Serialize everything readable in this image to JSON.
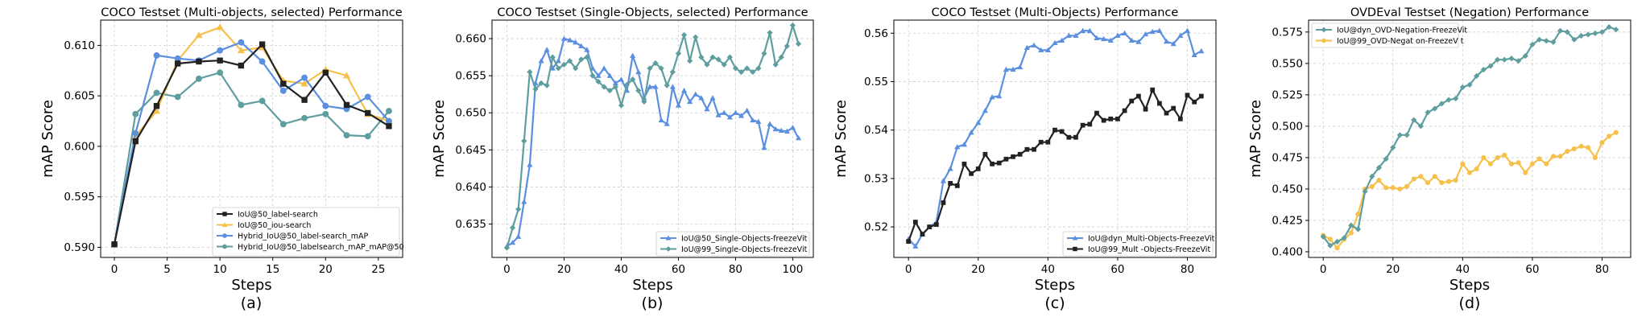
{
  "figure": {
    "background": "#ffffff"
  },
  "chart_data": [
    {
      "type": "line",
      "caption": "(a)",
      "title": "COCO Testset (Multi-objects, selected) Performance",
      "xlabel": "Steps",
      "ylabel": "mAP Score",
      "xlim": [
        -1.3,
        27.3
      ],
      "ylim": [
        0.589,
        0.6125
      ],
      "xticks": [
        0,
        5,
        10,
        15,
        20,
        25
      ],
      "yticks": [
        0.59,
        0.595,
        0.6,
        0.605,
        0.61
      ],
      "ytick_labels": [
        "0.590",
        "0.595",
        "0.600",
        "0.605",
        "0.610"
      ],
      "grid": true,
      "legend_position": "lower-right",
      "series": [
        {
          "name": "Hybrid_IoU@50_labelsearch_mAP_mAP@50",
          "color": "#5f9e9e",
          "marker": "circle",
          "x": [
            0,
            2,
            4,
            6,
            8,
            10,
            12,
            14,
            16,
            18,
            20,
            22,
            24,
            26
          ],
          "y": [
            0.5903,
            0.6032,
            0.6053,
            0.6049,
            0.6067,
            0.6073,
            0.6041,
            0.6045,
            0.6022,
            0.6028,
            0.6032,
            0.6011,
            0.601,
            0.6035
          ]
        },
        {
          "name": "IoU@50_iou-search",
          "color": "#f6c04d",
          "marker": "triangle",
          "x": [
            0,
            2,
            4,
            6,
            8,
            10,
            12,
            14,
            16,
            18,
            20,
            22,
            24,
            26
          ],
          "y": [
            0.5903,
            0.601,
            0.6035,
            0.6085,
            0.611,
            0.6118,
            0.6095,
            0.6098,
            0.6065,
            0.6062,
            0.6076,
            0.607,
            0.6032,
            0.6025
          ]
        },
        {
          "name": "Hybrid_IoU@50_label-search_mAP",
          "color": "#5b8fe0",
          "marker": "circle",
          "x": [
            0,
            2,
            4,
            6,
            8,
            10,
            12,
            14,
            16,
            18,
            20,
            22,
            24,
            26
          ],
          "y": [
            0.5903,
            0.6013,
            0.609,
            0.6087,
            0.6085,
            0.6095,
            0.6103,
            0.6084,
            0.6055,
            0.6068,
            0.604,
            0.6037,
            0.6049,
            0.6025
          ]
        },
        {
          "name": "IoU@50_label-search",
          "color": "#222222",
          "marker": "square",
          "x": [
            0,
            2,
            4,
            6,
            8,
            10,
            12,
            14,
            16,
            18,
            20,
            22,
            24,
            26
          ],
          "y": [
            0.5903,
            0.6005,
            0.604,
            0.6082,
            0.6084,
            0.6085,
            0.608,
            0.6101,
            0.6062,
            0.6046,
            0.6073,
            0.6041,
            0.6033,
            0.602
          ]
        }
      ],
      "legend_order": [
        "IoU@50_label-search",
        "IoU@50_iou-search",
        "Hybrid_IoU@50_label-search_mAP",
        "Hybrid_IoU@50_labelsearch_mAP_mAP@50"
      ]
    },
    {
      "type": "line",
      "caption": "(b)",
      "title": "COCO Testset (Single-Objects, selected) Performance",
      "xlabel": "Steps",
      "ylabel": "mAP Score",
      "xlim": [
        -5.2,
        107.2
      ],
      "ylim": [
        0.6305,
        0.6625
      ],
      "xticks": [
        0,
        20,
        40,
        60,
        80,
        100
      ],
      "yticks": [
        0.635,
        0.64,
        0.645,
        0.65,
        0.655,
        0.66
      ],
      "ytick_labels": [
        "0.635",
        "0.640",
        "0.645",
        "0.650",
        "0.655",
        "0.660"
      ],
      "grid": true,
      "legend_position": "lower-right",
      "series": [
        {
          "name": "IoU@50_Single-Objects-freezeVit",
          "color": "#5b8fe0",
          "marker": "triangle",
          "x": [
            0,
            2,
            4,
            6,
            8,
            10,
            12,
            14,
            16,
            18,
            20,
            22,
            24,
            26,
            28,
            30,
            32,
            34,
            36,
            38,
            40,
            42,
            44,
            46,
            48,
            50,
            52,
            54,
            56,
            58,
            60,
            62,
            64,
            66,
            68,
            70,
            72,
            74,
            76,
            78,
            80,
            82,
            84,
            86,
            88,
            90,
            92,
            94,
            96,
            98,
            100,
            102
          ],
          "y": [
            0.632,
            0.6325,
            0.6333,
            0.638,
            0.643,
            0.654,
            0.657,
            0.6585,
            0.656,
            0.657,
            0.66,
            0.6598,
            0.6595,
            0.659,
            0.6585,
            0.656,
            0.655,
            0.656,
            0.655,
            0.654,
            0.6545,
            0.653,
            0.6577,
            0.6555,
            0.652,
            0.6535,
            0.6535,
            0.649,
            0.6485,
            0.6535,
            0.651,
            0.653,
            0.6515,
            0.6525,
            0.652,
            0.6505,
            0.652,
            0.6497,
            0.65,
            0.6494,
            0.65,
            0.6496,
            0.6503,
            0.649,
            0.6488,
            0.6453,
            0.6485,
            0.6478,
            0.6476,
            0.6475,
            0.648,
            0.6466
          ]
        },
        {
          "name": "IoU@99_Single-Objects-freezeVit",
          "color": "#5f9e9e",
          "marker": "diamond",
          "x": [
            0,
            2,
            4,
            6,
            8,
            10,
            12,
            14,
            16,
            18,
            20,
            22,
            24,
            26,
            28,
            30,
            32,
            34,
            36,
            38,
            40,
            42,
            44,
            46,
            48,
            50,
            52,
            54,
            56,
            58,
            60,
            62,
            64,
            66,
            68,
            70,
            72,
            74,
            76,
            78,
            80,
            82,
            84,
            86,
            88,
            90,
            92,
            94,
            96,
            98,
            100,
            102
          ],
          "y": [
            0.6318,
            0.6345,
            0.637,
            0.6462,
            0.6555,
            0.6532,
            0.654,
            0.6537,
            0.6575,
            0.656,
            0.6565,
            0.657,
            0.656,
            0.6572,
            0.6575,
            0.655,
            0.6542,
            0.6535,
            0.653,
            0.6535,
            0.651,
            0.6538,
            0.6545,
            0.653,
            0.6515,
            0.656,
            0.6567,
            0.656,
            0.6537,
            0.6555,
            0.658,
            0.6605,
            0.657,
            0.6602,
            0.6575,
            0.6565,
            0.6575,
            0.6572,
            0.6565,
            0.6575,
            0.656,
            0.6555,
            0.656,
            0.6555,
            0.656,
            0.658,
            0.6608,
            0.6565,
            0.6575,
            0.659,
            0.6618,
            0.6593
          ]
        }
      ]
    },
    {
      "type": "line",
      "caption": "(c)",
      "title": "COCO Testset (Multi-Objects) Performance",
      "xlabel": "Steps",
      "ylabel": "mAP Score",
      "xlim": [
        -4.2,
        88.2
      ],
      "ylim": [
        0.5137,
        0.5627
      ],
      "xticks": [
        0,
        20,
        40,
        60,
        80
      ],
      "yticks": [
        0.52,
        0.53,
        0.54,
        0.55,
        0.56
      ],
      "ytick_labels": [
        "0.52",
        "0.53",
        "0.54",
        "0.55",
        "0.56"
      ],
      "grid": true,
      "legend_position": "lower-right",
      "series": [
        {
          "name": "IoU@dyn_Multi-Objects-FreezeVit",
          "color": "#5b8fe0",
          "marker": "triangle",
          "x": [
            0,
            2,
            4,
            6,
            8,
            10,
            12,
            14,
            16,
            18,
            20,
            22,
            24,
            26,
            28,
            30,
            32,
            34,
            36,
            38,
            40,
            42,
            44,
            46,
            48,
            50,
            52,
            54,
            56,
            58,
            60,
            62,
            64,
            66,
            68,
            70,
            72,
            74,
            76,
            78,
            80,
            82,
            84
          ],
          "y": [
            0.5175,
            0.516,
            0.5185,
            0.52,
            0.521,
            0.5295,
            0.532,
            0.5365,
            0.537,
            0.5395,
            0.5415,
            0.544,
            0.5468,
            0.547,
            0.5525,
            0.5525,
            0.553,
            0.557,
            0.5575,
            0.5565,
            0.5565,
            0.558,
            0.5585,
            0.5595,
            0.5595,
            0.5605,
            0.5605,
            0.559,
            0.5588,
            0.5585,
            0.5595,
            0.56,
            0.5585,
            0.5582,
            0.5598,
            0.5603,
            0.5605,
            0.5583,
            0.5578,
            0.5595,
            0.5605,
            0.5555,
            0.5563
          ]
        },
        {
          "name": "IoU@99_Mult -Objects-FreezeVit",
          "color": "#222222",
          "marker": "square",
          "x": [
            0,
            2,
            4,
            6,
            8,
            10,
            12,
            14,
            16,
            18,
            20,
            22,
            24,
            26,
            28,
            30,
            32,
            34,
            36,
            38,
            40,
            42,
            44,
            46,
            48,
            50,
            52,
            54,
            56,
            58,
            60,
            62,
            64,
            66,
            68,
            70,
            72,
            74,
            76,
            78,
            80,
            82,
            84
          ],
          "y": [
            0.517,
            0.521,
            0.5185,
            0.52,
            0.5205,
            0.525,
            0.529,
            0.5285,
            0.533,
            0.531,
            0.532,
            0.535,
            0.533,
            0.5332,
            0.534,
            0.5345,
            0.535,
            0.536,
            0.536,
            0.5375,
            0.5375,
            0.54,
            0.5397,
            0.5385,
            0.5385,
            0.541,
            0.5412,
            0.5435,
            0.542,
            0.5423,
            0.5423,
            0.544,
            0.546,
            0.547,
            0.5443,
            0.5483,
            0.5455,
            0.5435,
            0.5445,
            0.5423,
            0.5472,
            0.5458,
            0.547
          ]
        }
      ]
    },
    {
      "type": "line",
      "caption": "(d)",
      "title": "OVDEval Testset (Negation) Performance",
      "xlabel": "Steps",
      "ylabel": "mAP Score",
      "xlim": [
        -4.2,
        88.2
      ],
      "ylim": [
        0.3955,
        0.5845
      ],
      "xticks": [
        0,
        20,
        40,
        60,
        80
      ],
      "yticks": [
        0.4,
        0.425,
        0.45,
        0.475,
        0.5,
        0.525,
        0.55,
        0.575
      ],
      "ytick_labels": [
        "0.400",
        "0.425",
        "0.450",
        "0.475",
        "0.500",
        "0.525",
        "0.550",
        "0.575"
      ],
      "grid": true,
      "legend_position": "upper-left",
      "series": [
        {
          "name": "IoU@99_OVD-Negat on-FreezeV t",
          "color": "#f6c04d",
          "marker": "circle",
          "x": [
            0,
            2,
            4,
            6,
            8,
            10,
            12,
            14,
            16,
            18,
            20,
            22,
            24,
            26,
            28,
            30,
            32,
            34,
            36,
            38,
            40,
            42,
            44,
            46,
            48,
            50,
            52,
            54,
            56,
            58,
            60,
            62,
            64,
            66,
            68,
            70,
            72,
            74,
            76,
            78,
            80,
            82,
            84
          ],
          "y": [
            0.413,
            0.41,
            0.403,
            0.41,
            0.415,
            0.43,
            0.45,
            0.452,
            0.457,
            0.451,
            0.451,
            0.45,
            0.452,
            0.458,
            0.46,
            0.455,
            0.46,
            0.455,
            0.456,
            0.457,
            0.47,
            0.463,
            0.466,
            0.475,
            0.47,
            0.475,
            0.477,
            0.47,
            0.471,
            0.463,
            0.47,
            0.474,
            0.47,
            0.476,
            0.476,
            0.48,
            0.482,
            0.484,
            0.483,
            0.475,
            0.487,
            0.492,
            0.495
          ]
        },
        {
          "name": "IoU@dyn_OVD-Negation-FreezeVit",
          "color": "#5f9e9e",
          "marker": "diamond",
          "x": [
            0,
            2,
            4,
            6,
            8,
            10,
            12,
            14,
            16,
            18,
            20,
            22,
            24,
            26,
            28,
            30,
            32,
            34,
            36,
            38,
            40,
            42,
            44,
            46,
            48,
            50,
            52,
            54,
            56,
            58,
            60,
            62,
            64,
            66,
            68,
            70,
            72,
            74,
            76,
            78,
            80,
            82,
            84
          ],
          "y": [
            0.412,
            0.405,
            0.408,
            0.411,
            0.421,
            0.418,
            0.448,
            0.46,
            0.467,
            0.474,
            0.483,
            0.493,
            0.493,
            0.505,
            0.5,
            0.511,
            0.514,
            0.518,
            0.521,
            0.522,
            0.531,
            0.533,
            0.54,
            0.545,
            0.548,
            0.553,
            0.553,
            0.554,
            0.552,
            0.556,
            0.565,
            0.569,
            0.568,
            0.567,
            0.576,
            0.575,
            0.569,
            0.572,
            0.573,
            0.574,
            0.575,
            0.579,
            0.577
          ]
        }
      ],
      "legend_order": [
        "IoU@dyn_OVD-Negation-FreezeVit",
        "IoU@99_OVD-Negat on-FreezeV t"
      ]
    }
  ]
}
